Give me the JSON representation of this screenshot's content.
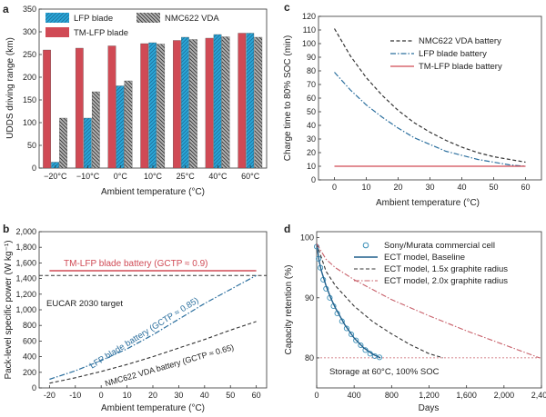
{
  "colors": {
    "red": "#d04a55",
    "blue": "#2aa8d8",
    "blue_hatch": "#1d6f9c",
    "gray": "#a9a9a9",
    "gray_hatch": "#333333",
    "navy": "#1f5f8b",
    "teal": "#2b6f9e",
    "dark": "#333333",
    "rose": "#c8606a",
    "marker": "#3a8fb7"
  },
  "chart_data": [
    {
      "panel": "a",
      "type": "bar",
      "ylabel": "UDDS driving range (km)",
      "xlabel": "Ambient temperature (°C)",
      "ylim": [
        0,
        350
      ],
      "yticks": [
        0,
        50,
        100,
        150,
        200,
        250,
        300,
        350
      ],
      "categories": [
        "−20°C",
        "−10°C",
        "0°C",
        "10°C",
        "25°C",
        "40°C",
        "60°C"
      ],
      "legend_position": "top",
      "series": [
        {
          "name": "TM-LFP blade",
          "values": [
            260,
            264,
            269,
            274,
            281,
            286,
            297
          ]
        },
        {
          "name": "LFP blade",
          "values": [
            13,
            110,
            181,
            276,
            288,
            294,
            297
          ]
        },
        {
          "name": "NMC622 VDA",
          "values": [
            110,
            168,
            192,
            273,
            283,
            289,
            288
          ]
        }
      ]
    },
    {
      "panel": "b",
      "type": "line",
      "ylabel": "Pack-level specific power (W kg⁻¹)",
      "xlabel": "Ambient temperature (°C)",
      "xlim": [
        -20,
        60
      ],
      "ylim": [
        0,
        2000
      ],
      "xticks": [
        -20,
        -10,
        0,
        10,
        20,
        30,
        40,
        50,
        60
      ],
      "yticks": [
        0,
        200,
        400,
        600,
        800,
        1000,
        1200,
        1400,
        1600,
        1800,
        2000
      ],
      "ytick_labels": [
        "0",
        "200",
        "400",
        "600",
        "800",
        "1,000",
        "1,200",
        "1,400",
        "1,600",
        "1,800",
        "2,000"
      ],
      "annotations": {
        "tmlfp": "TM-LFP blade battery  (GCTP ≈ 0.9)",
        "eucar": "EUCAR 2030 target",
        "lfp": "LFP blade battery  (GCTP ≈ 0.85)",
        "nmc": "NMC622 VDA battery (GCTP ≈ 0.65)"
      },
      "series": [
        {
          "name": "TM-LFP blade battery",
          "x": [
            -20,
            60
          ],
          "y": [
            1500,
            1500
          ]
        },
        {
          "name": "EUCAR 2030 target",
          "x": [
            -20,
            60
          ],
          "y": [
            1440,
            1440
          ]
        },
        {
          "name": "LFP blade battery",
          "x": [
            -20,
            -10,
            0,
            10,
            20,
            30,
            40,
            50,
            60
          ],
          "y": [
            110,
            220,
            350,
            500,
            680,
            880,
            1080,
            1260,
            1440
          ]
        },
        {
          "name": "NMC622 VDA battery",
          "x": [
            -20,
            -10,
            0,
            10,
            20,
            30,
            40,
            50,
            60
          ],
          "y": [
            60,
            130,
            210,
            300,
            400,
            510,
            620,
            740,
            850
          ]
        }
      ]
    },
    {
      "panel": "c",
      "type": "line",
      "ylabel": "Charge time to 80% SOC (min)",
      "xlabel": "Ambient temperature (°C)",
      "xlim": [
        -5,
        65
      ],
      "ylim": [
        0,
        120
      ],
      "xticks": [
        0,
        10,
        20,
        30,
        40,
        50,
        60
      ],
      "yticks": [
        0,
        10,
        20,
        30,
        40,
        50,
        60,
        70,
        80,
        90,
        100,
        110,
        120
      ],
      "legend_position": "top-right",
      "series": [
        {
          "name": "NMC622 VDA battery",
          "x": [
            0,
            5,
            10,
            15,
            20,
            25,
            30,
            35,
            40,
            45,
            50,
            55,
            60
          ],
          "y": [
            111,
            91,
            75,
            62,
            51,
            42,
            35,
            29,
            24,
            20,
            17,
            15,
            13
          ]
        },
        {
          "name": "LFP blade battery",
          "x": [
            0,
            5,
            10,
            15,
            20,
            25,
            30,
            35,
            40,
            45,
            50,
            55,
            60
          ],
          "y": [
            79,
            66,
            55,
            46,
            38,
            31,
            26,
            21,
            18,
            15,
            13,
            11,
            10
          ]
        },
        {
          "name": "TM-LFP blade battery",
          "x": [
            0,
            60
          ],
          "y": [
            10,
            10
          ]
        }
      ]
    },
    {
      "panel": "d",
      "type": "line",
      "ylabel": "Capacity retention (%)",
      "xlabel": "Days",
      "xlim": [
        0,
        2400
      ],
      "ylim": [
        75,
        101
      ],
      "xticks": [
        0,
        400,
        800,
        1200,
        1600,
        2000,
        2400
      ],
      "xtick_labels": [
        "0",
        "400",
        "800",
        "1,200",
        "1,600",
        "2,000",
        "2,400"
      ],
      "yticks": [
        80,
        90,
        100
      ],
      "legend_position": "top-right",
      "annotation": "Storage at 60°C, 100% SOC",
      "reference_line": 80,
      "series": [
        {
          "name": "Sony/Murata commercial cell",
          "style": "markers",
          "x": [
            0,
            20,
            40,
            70,
            100,
            140,
            180,
            220,
            270,
            320,
            370,
            420,
            470,
            520,
            570,
            620,
            670
          ],
          "y": [
            98.5,
            96.5,
            95,
            93,
            91.5,
            90,
            88.6,
            87.4,
            86.1,
            84.9,
            83.9,
            82.9,
            82.1,
            81.3,
            80.7,
            80.3,
            80.1
          ]
        },
        {
          "name": "ECT model, Baseline",
          "style": "solid",
          "x": [
            0,
            25,
            50,
            100,
            150,
            200,
            300,
            400,
            500,
            600,
            680
          ],
          "y": [
            99,
            96.2,
            94.5,
            92,
            90,
            88.3,
            85.5,
            83.3,
            81.7,
            80.6,
            80
          ]
        },
        {
          "name": "ECT model, 1.5x graphite radius",
          "style": "dashed",
          "x": [
            0,
            100,
            200,
            400,
            600,
            800,
            1000,
            1200,
            1350
          ],
          "y": [
            99,
            94.4,
            92,
            88.6,
            86,
            84,
            82.2,
            80.7,
            80
          ]
        },
        {
          "name": "ECT model, 2.0x graphite radius",
          "style": "dashdot",
          "x": [
            0,
            100,
            200,
            400,
            800,
            1200,
            1600,
            2000,
            2380
          ],
          "y": [
            99,
            96.4,
            95,
            93,
            89.7,
            87,
            84.5,
            82.2,
            80
          ]
        }
      ]
    }
  ]
}
